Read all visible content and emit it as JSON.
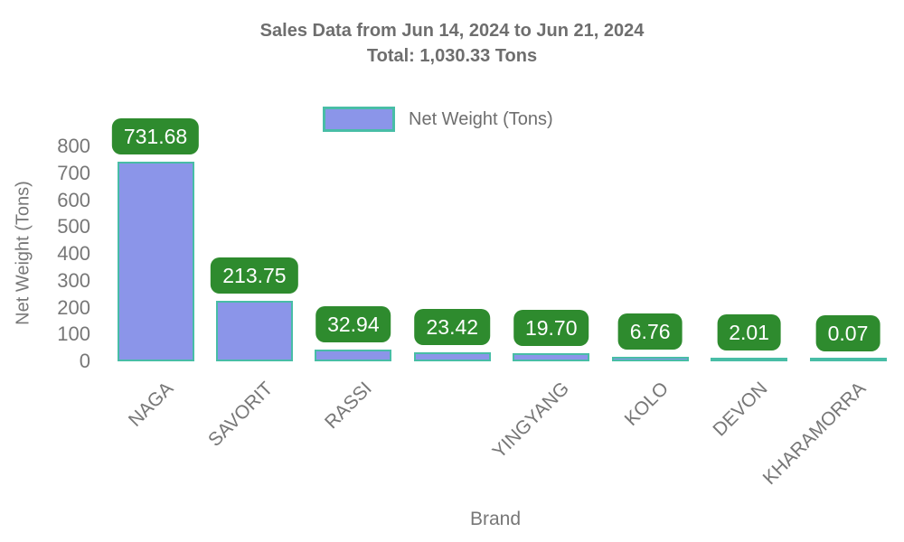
{
  "title": {
    "line1": "Sales Data from Jun 14, 2024 to Jun 21, 2024",
    "line2": "Total: 1,030.33 Tons"
  },
  "legend": {
    "label": "Net Weight (Tons)",
    "position": "upper center"
  },
  "axes": {
    "x_label": "Brand",
    "y_label": "Net Weight (Tons)"
  },
  "colors": {
    "bar_fill": "#8b95e9",
    "bar_edge": "#48bda6",
    "badge_bg": "#2e8b2e",
    "badge_text": "#ffffff",
    "title_gray": "#6e6e6e",
    "tick_gray": "#777777",
    "background": "#ffffff"
  },
  "chart_data": {
    "type": "bar",
    "title": "Sales Data from Jun 14, 2024 to Jun 21, 2024 — Total: 1,030.33 Tons",
    "categories": [
      "NAGA",
      "SAVORIT",
      "RASSI",
      "",
      "YINGYANG",
      "KOLO",
      "DEVON",
      "KHARAMORRA"
    ],
    "values": [
      731.68,
      213.75,
      32.94,
      23.42,
      19.7,
      6.76,
      2.01,
      0.07
    ],
    "value_labels": [
      "731.68",
      "213.75",
      "32.94",
      "23.42",
      "19.70",
      "6.76",
      "2.01",
      "0.07"
    ],
    "total": 1030.33,
    "xlabel": "Brand",
    "ylabel": "Net Weight (Tons)",
    "ylim": [
      0,
      800
    ],
    "yticks": [
      0,
      100,
      200,
      300,
      400,
      500,
      600,
      700,
      800
    ],
    "grid": false,
    "legend_entries": [
      "Net Weight (Tons)"
    ]
  }
}
